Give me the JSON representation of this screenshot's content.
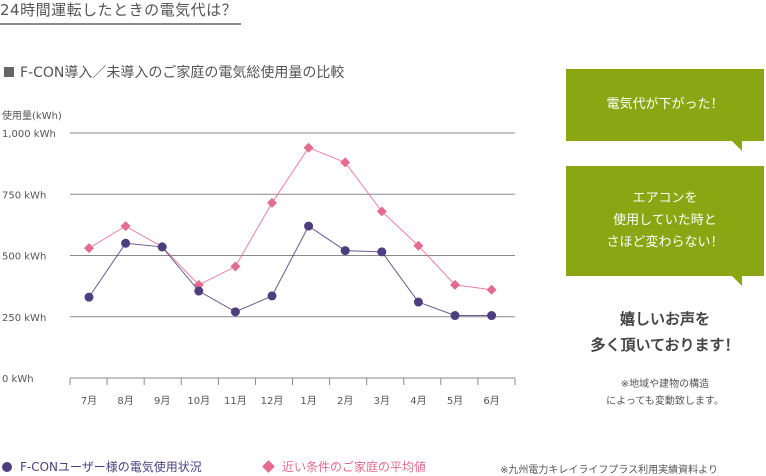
{
  "page": {
    "heading": "24時間運転したときの電気代は？",
    "subheading": "F-CON導入／未導入のご家庭の電気総使用量の比較"
  },
  "chart_data": {
    "type": "line",
    "title": "F-CON導入／未導入のご家庭の電気総使用量の比較",
    "ylabel": "使用量(kWh)",
    "xlabel": "",
    "ylim": [
      0,
      1000
    ],
    "yticks": [
      0,
      250,
      500,
      750,
      1000
    ],
    "ytick_labels": [
      "0 kWh",
      "250 kWh",
      "500 kWh",
      "750 kWh",
      "1,000 kWh"
    ],
    "grid": "horizontal",
    "categories": [
      "7月",
      "8月",
      "9月",
      "10月",
      "11月",
      "12月",
      "1月",
      "2月",
      "3月",
      "4月",
      "5月",
      "6月"
    ],
    "series": [
      {
        "name": "F-CONユーザー様の電気使用状況",
        "color": "#4b3f80",
        "marker": "circle",
        "values": [
          330,
          550,
          535,
          355,
          270,
          335,
          620,
          520,
          515,
          310,
          255,
          255
        ]
      },
      {
        "name": "近い条件のご家庭の平均値",
        "color": "#e46c8f",
        "marker": "diamond",
        "values": [
          530,
          620,
          535,
          380,
          455,
          715,
          940,
          880,
          680,
          540,
          380,
          360
        ]
      }
    ],
    "legend_position": "bottom"
  },
  "callouts": {
    "bubble1": "電気代が下がった！",
    "bubble2": "エアコンを\n使用していた時と\nさほど変わらない！",
    "main_text": "嬉しいお声を\n多く頂いております！",
    "note": "※地域や建物の構造\nによっても変動致します。",
    "accent_color": "#8aa612"
  },
  "footer": {
    "source": "※九州電力キレイライフプラス利用実績資料より"
  }
}
